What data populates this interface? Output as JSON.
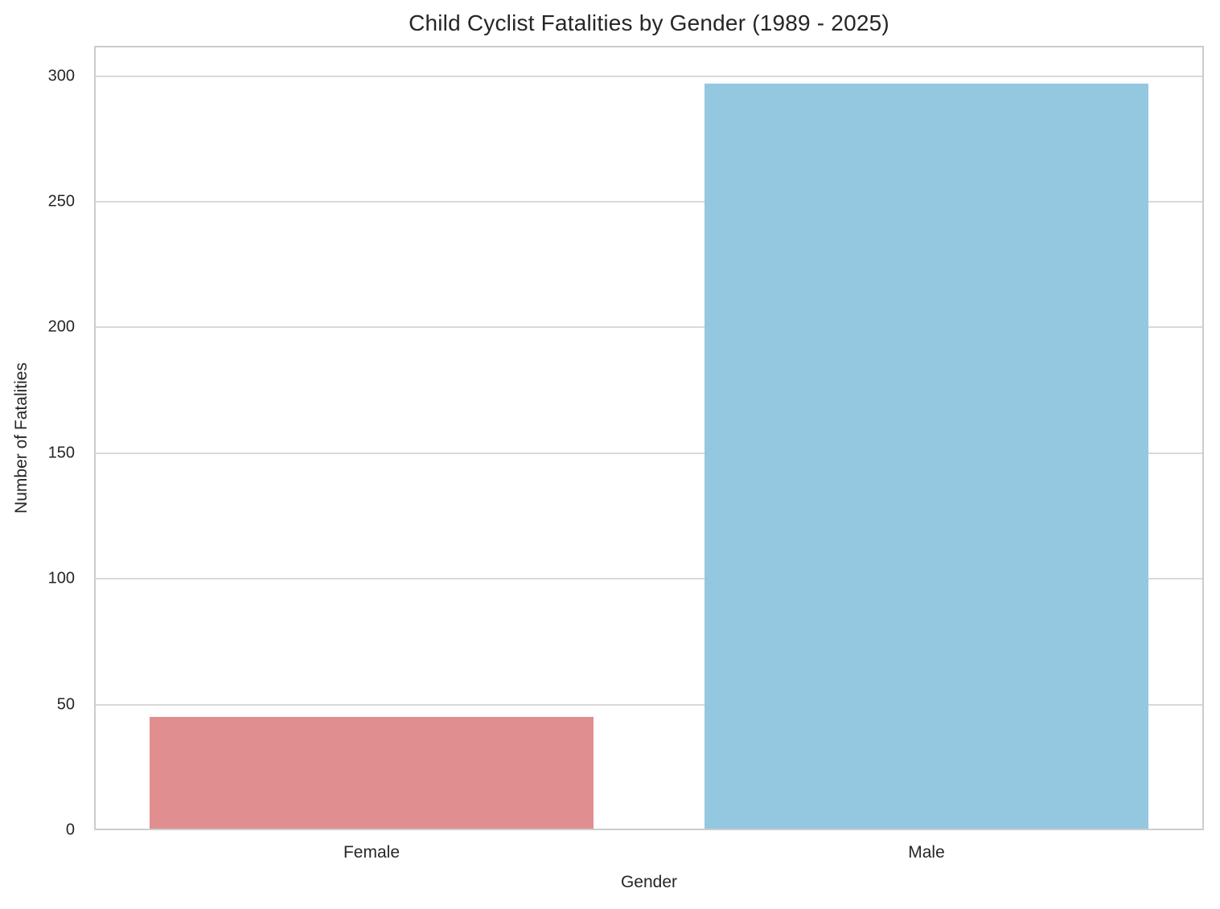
{
  "chart_data": {
    "type": "bar",
    "title": "Child Cyclist Fatalities by Gender (1989 - 2025)",
    "xlabel": "Gender",
    "ylabel": "Number of Fatalities",
    "categories": [
      "Female",
      "Male"
    ],
    "values": [
      45,
      297
    ],
    "bar_colors": [
      "#e18e90",
      "#94c8e0"
    ],
    "ylim": [
      0,
      312
    ],
    "yticks": [
      0,
      50,
      100,
      150,
      200,
      250,
      300
    ],
    "grid": "horizontal",
    "legend": "none",
    "styles": {
      "background": "#ffffff",
      "grid_color": "#d9d9d9",
      "spine_color": "#cccccc",
      "text_color": "#262626"
    }
  }
}
